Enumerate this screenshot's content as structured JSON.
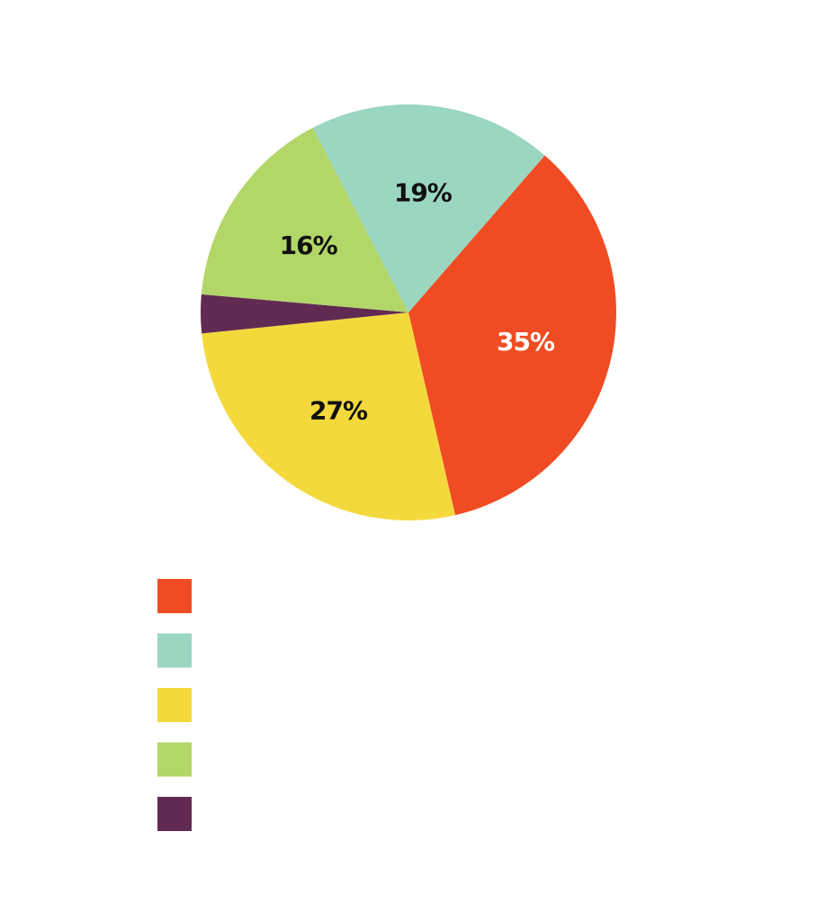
{
  "chart_data": {
    "type": "pie",
    "slices": [
      {
        "value": 35,
        "label": "35%",
        "color": "#F04C23",
        "label_color": "#FFFFFF"
      },
      {
        "value": 27,
        "label": "27%",
        "color": "#F4D93C",
        "label_color": "#111111"
      },
      {
        "value": 3,
        "label": "",
        "color": "#612A52",
        "label_color": "#FFFFFF"
      },
      {
        "value": 16,
        "label": "16%",
        "color": "#B2D667",
        "label_color": "#111111"
      },
      {
        "value": 19,
        "label": "19%",
        "color": "#9AD6C0",
        "label_color": "#111111"
      }
    ],
    "legend": {
      "placement": "bottom-left",
      "entries": [
        {
          "color": "#F04C23",
          "text": ""
        },
        {
          "color": "#9AD6C0",
          "text": ""
        },
        {
          "color": "#F4D93C",
          "text": ""
        },
        {
          "color": "#B2D667",
          "text": ""
        },
        {
          "color": "#612A52",
          "text": ""
        }
      ]
    }
  }
}
